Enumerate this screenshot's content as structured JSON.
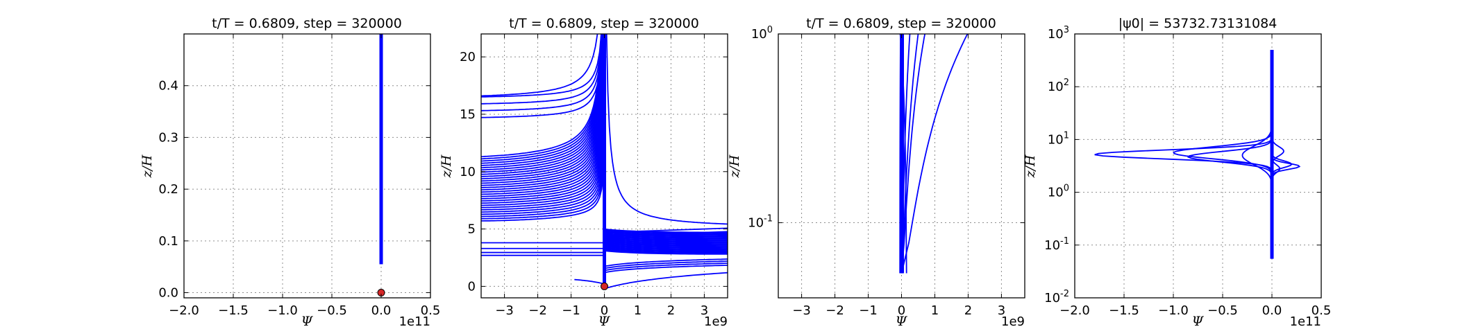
{
  "figure": {
    "background": "#ffffff",
    "line_color": "#0000ff",
    "marker_color": "#d62728"
  },
  "chart_data": [
    {
      "type": "line",
      "title": "t/T = 0.6809, step = 320000",
      "xlabel": "Ψ",
      "ylabel": "z/H",
      "x_offset_label": "1e11",
      "xlim": [
        -2.0,
        0.5
      ],
      "ylim": [
        -0.01,
        0.5
      ],
      "xticks": [
        "−2.0",
        "−1.5",
        "−1.0",
        "−0.5",
        "0.0",
        "0.5"
      ],
      "yticks": [
        "0.0",
        "0.1",
        "0.2",
        "0.3",
        "0.4"
      ],
      "grid": true,
      "series": [
        {
          "x": [
            0.0,
            0.0
          ],
          "y": [
            0.055,
            0.5
          ],
          "style": "thick"
        }
      ],
      "markers": [
        {
          "x": 0.0,
          "y": 0.0
        }
      ]
    },
    {
      "type": "line",
      "title": "t/T = 0.6809, step = 320000",
      "xlabel": "Ψ",
      "ylabel": "z/H",
      "x_offset_label": "1e9",
      "xlim": [
        -3.7,
        3.7
      ],
      "ylim": [
        -1.0,
        22.0
      ],
      "xticks": [
        "−3",
        "−2",
        "−1",
        "0",
        "1",
        "2",
        "3"
      ],
      "yticks": [
        "0",
        "5",
        "10",
        "15",
        "20"
      ],
      "grid": true,
      "series": [],
      "markers": [
        {
          "x": 0.0,
          "y": 0.0
        }
      ]
    },
    {
      "type": "line",
      "title": "t/T = 0.6809, step = 320000",
      "xlabel": "Ψ",
      "ylabel": "z/H",
      "x_offset_label": "1e9",
      "xlim": [
        -3.7,
        3.7
      ],
      "ylim": [
        0.04,
        1.0
      ],
      "yscale": "log",
      "xticks": [
        "−3",
        "−2",
        "−1",
        "0",
        "1",
        "2",
        "3"
      ],
      "yticks": [
        "10-1",
        "100"
      ],
      "grid": true,
      "series": []
    },
    {
      "type": "line",
      "title": "|ψ0| = 53732.73131084",
      "xlabel": "Ψ",
      "ylabel": "z/H",
      "x_offset_label": "1e11",
      "xlim": [
        -2.0,
        0.5
      ],
      "ylim": [
        0.01,
        1000
      ],
      "yscale": "log",
      "xticks": [
        "−2.0",
        "−1.5",
        "−1.0",
        "−0.5",
        "0.0",
        "0.5"
      ],
      "yticks": [
        "10-2",
        "10-1",
        "100",
        "101",
        "102",
        "103"
      ],
      "grid": true,
      "series": []
    }
  ]
}
